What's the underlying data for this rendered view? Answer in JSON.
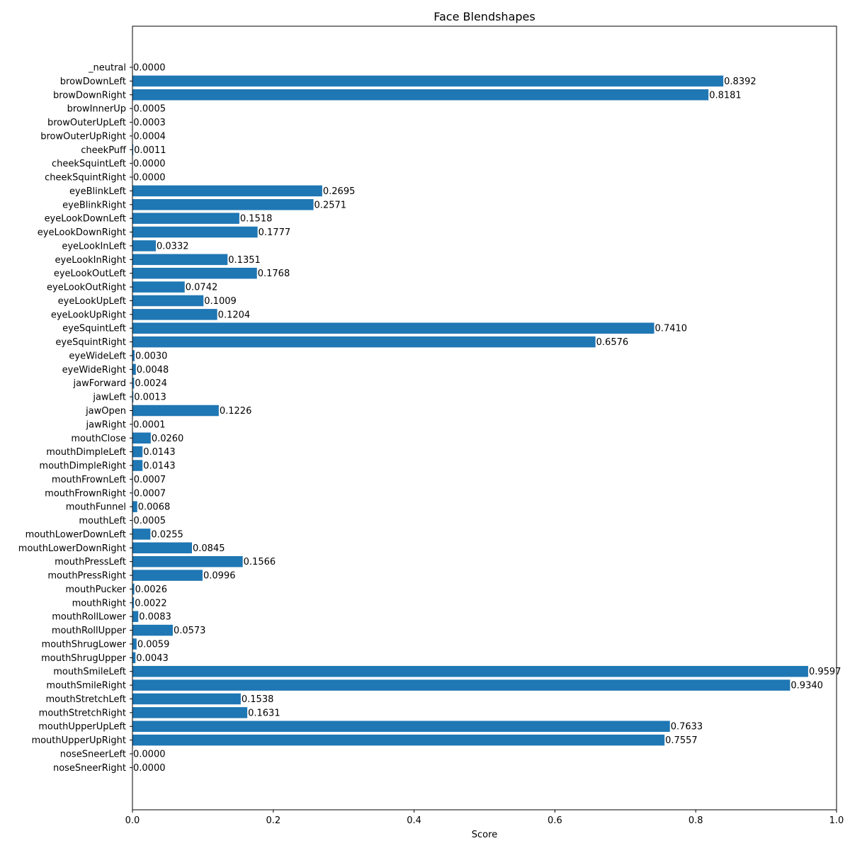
{
  "chart_data": {
    "type": "bar",
    "orientation": "horizontal",
    "title": "Face Blendshapes",
    "xlabel": "Score",
    "ylabel": "",
    "xlim": [
      0.0,
      1.0
    ],
    "xticks": [
      "0.0",
      "0.2",
      "0.4",
      "0.6",
      "0.8",
      "1.0"
    ],
    "grid": false,
    "bar_color": "#1f77b4",
    "categories": [
      "_neutral",
      "browDownLeft",
      "browDownRight",
      "browInnerUp",
      "browOuterUpLeft",
      "browOuterUpRight",
      "cheekPuff",
      "cheekSquintLeft",
      "cheekSquintRight",
      "eyeBlinkLeft",
      "eyeBlinkRight",
      "eyeLookDownLeft",
      "eyeLookDownRight",
      "eyeLookInLeft",
      "eyeLookInRight",
      "eyeLookOutLeft",
      "eyeLookOutRight",
      "eyeLookUpLeft",
      "eyeLookUpRight",
      "eyeSquintLeft",
      "eyeSquintRight",
      "eyeWideLeft",
      "eyeWideRight",
      "jawForward",
      "jawLeft",
      "jawOpen",
      "jawRight",
      "mouthClose",
      "mouthDimpleLeft",
      "mouthDimpleRight",
      "mouthFrownLeft",
      "mouthFrownRight",
      "mouthFunnel",
      "mouthLeft",
      "mouthLowerDownLeft",
      "mouthLowerDownRight",
      "mouthPressLeft",
      "mouthPressRight",
      "mouthPucker",
      "mouthRight",
      "mouthRollLower",
      "mouthRollUpper",
      "mouthShrugLower",
      "mouthShrugUpper",
      "mouthSmileLeft",
      "mouthSmileRight",
      "mouthStretchLeft",
      "mouthStretchRight",
      "mouthUpperUpLeft",
      "mouthUpperUpRight",
      "noseSneerLeft",
      "noseSneerRight"
    ],
    "values": [
      0.0,
      0.8392,
      0.8181,
      0.0005,
      0.0003,
      0.0004,
      0.0011,
      0.0,
      0.0,
      0.2695,
      0.2571,
      0.1518,
      0.1777,
      0.0332,
      0.1351,
      0.1768,
      0.0742,
      0.1009,
      0.1204,
      0.741,
      0.6576,
      0.003,
      0.0048,
      0.0024,
      0.0013,
      0.1226,
      0.0001,
      0.026,
      0.0143,
      0.0143,
      0.0007,
      0.0007,
      0.0068,
      0.0005,
      0.0255,
      0.0845,
      0.1566,
      0.0996,
      0.0026,
      0.0022,
      0.0083,
      0.0573,
      0.0059,
      0.0043,
      0.9597,
      0.934,
      0.1538,
      0.1631,
      0.7633,
      0.7557,
      0.0,
      0.0
    ],
    "value_labels": [
      "0.0000",
      "0.8392",
      "0.8181",
      "0.0005",
      "0.0003",
      "0.0004",
      "0.0011",
      "0.0000",
      "0.0000",
      "0.2695",
      "0.2571",
      "0.1518",
      "0.1777",
      "0.0332",
      "0.1351",
      "0.1768",
      "0.0742",
      "0.1009",
      "0.1204",
      "0.7410",
      "0.6576",
      "0.0030",
      "0.0048",
      "0.0024",
      "0.0013",
      "0.1226",
      "0.0001",
      "0.0260",
      "0.0143",
      "0.0143",
      "0.0007",
      "0.0007",
      "0.0068",
      "0.0005",
      "0.0255",
      "0.0845",
      "0.1566",
      "0.0996",
      "0.0026",
      "0.0022",
      "0.0083",
      "0.0573",
      "0.0059",
      "0.0043",
      "0.9597",
      "0.9340",
      "0.1538",
      "0.1631",
      "0.7633",
      "0.7557",
      "0.0000",
      "0.0000"
    ]
  }
}
